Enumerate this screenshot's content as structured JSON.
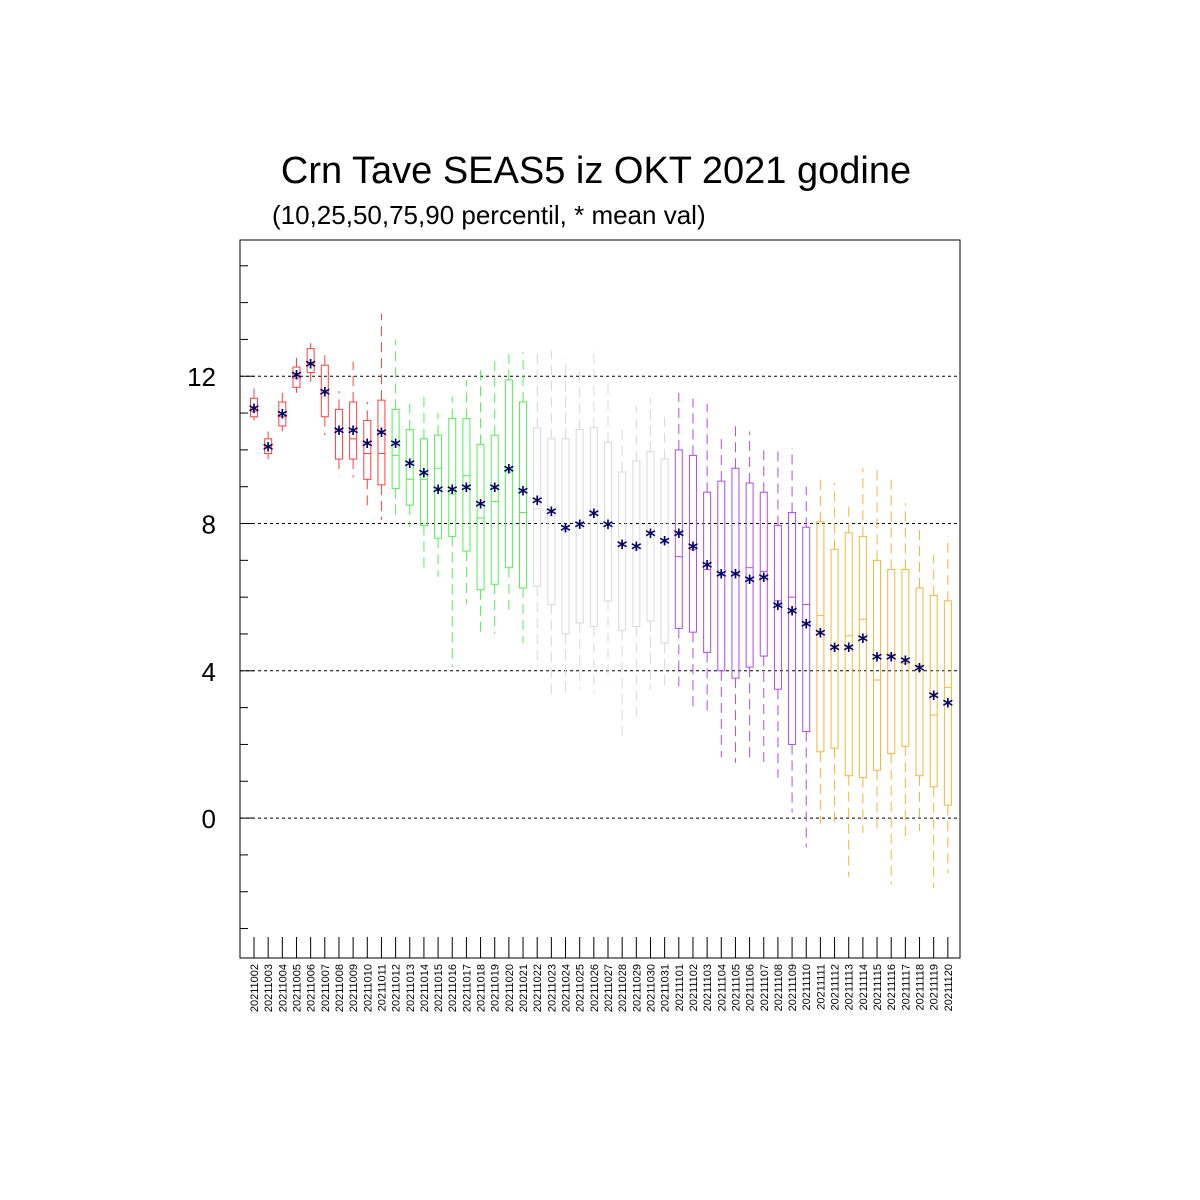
{
  "chart_data": {
    "type": "box",
    "title": "Crn Tave SEAS5 iz OKT 2021 godine",
    "subtitle": "(10,25,50,75,90 percentil, * mean val)",
    "xlabel": "",
    "ylabel": "",
    "ylim": [
      -3.8,
      15.7
    ],
    "yticks": [
      0,
      4,
      8,
      12
    ],
    "grid": "horizontal dashed at major ticks",
    "box_columns": [
      "date",
      "p10",
      "p25",
      "p50",
      "p75",
      "p90",
      "mean"
    ],
    "boxes": [
      [
        "20211002",
        10.8,
        10.9,
        11.05,
        11.4,
        11.7,
        11.1
      ],
      [
        "20211003",
        9.75,
        9.9,
        10.1,
        10.3,
        10.5,
        10.05
      ],
      [
        "20211004",
        10.5,
        10.65,
        10.9,
        11.3,
        11.55,
        10.95
      ],
      [
        "20211005",
        11.55,
        11.7,
        11.95,
        12.25,
        12.5,
        12.0
      ],
      [
        "20211006",
        11.85,
        12.1,
        12.35,
        12.75,
        12.9,
        12.3
      ],
      [
        "20211007",
        10.4,
        10.9,
        11.6,
        12.3,
        12.6,
        11.55
      ],
      [
        "20211008",
        9.3,
        9.75,
        10.55,
        11.1,
        11.6,
        10.5
      ],
      [
        "20211009",
        9.25,
        9.75,
        10.3,
        11.3,
        12.4,
        10.5
      ],
      [
        "20211010",
        8.35,
        9.2,
        9.9,
        10.8,
        11.3,
        10.15
      ],
      [
        "20211011",
        8.1,
        9.05,
        9.9,
        11.35,
        13.7,
        10.45
      ],
      [
        "20211012",
        8.2,
        8.95,
        9.85,
        11.1,
        13.0,
        10.15
      ],
      [
        "20211013",
        7.9,
        8.5,
        9.2,
        10.55,
        11.3,
        9.6
      ],
      [
        "20211014",
        6.7,
        7.95,
        9.2,
        10.3,
        11.5,
        9.35
      ],
      [
        "20211015",
        6.55,
        7.6,
        9.5,
        10.4,
        11.0,
        8.9
      ],
      [
        "20211016",
        4.1,
        7.65,
        8.8,
        10.85,
        11.45,
        8.9
      ],
      [
        "20211017",
        5.8,
        7.25,
        9.3,
        10.85,
        11.9,
        8.95
      ],
      [
        "20211018",
        5.0,
        6.2,
        8.15,
        10.15,
        12.2,
        8.5
      ],
      [
        "20211019",
        5.0,
        6.35,
        8.6,
        10.4,
        12.5,
        8.95
      ],
      [
        "20211020",
        5.5,
        6.8,
        9.4,
        11.9,
        12.7,
        9.45
      ],
      [
        "20211021",
        4.75,
        6.25,
        8.3,
        11.3,
        12.65,
        8.85
      ],
      [
        "20211022",
        4.1,
        6.3,
        8.4,
        10.6,
        12.65,
        8.6
      ],
      [
        "20211023",
        3.2,
        5.8,
        8.2,
        10.3,
        12.7,
        8.3
      ],
      [
        "20211024",
        3.4,
        5.0,
        7.8,
        10.3,
        12.5,
        7.85
      ],
      [
        "20211025",
        3.5,
        5.3,
        7.9,
        10.55,
        12.2,
        7.95
      ],
      [
        "20211026",
        3.4,
        5.2,
        8.2,
        10.6,
        12.8,
        8.25
      ],
      [
        "20211027",
        3.7,
        5.9,
        8.0,
        10.2,
        11.9,
        7.95
      ],
      [
        "20211028",
        2.25,
        5.1,
        7.4,
        9.4,
        10.6,
        7.4
      ],
      [
        "20211029",
        2.6,
        5.2,
        7.3,
        9.7,
        11.2,
        7.35
      ],
      [
        "20211030",
        3.5,
        5.35,
        7.7,
        9.95,
        11.4,
        7.7
      ],
      [
        "20211031",
        3.5,
        4.75,
        7.45,
        9.75,
        11.0,
        7.5
      ],
      [
        "20211101",
        3.5,
        5.15,
        7.1,
        10.0,
        11.55,
        7.7
      ],
      [
        "20211102",
        2.9,
        5.05,
        7.3,
        9.85,
        11.4,
        7.35
      ],
      [
        "20211103",
        2.9,
        4.5,
        6.75,
        8.85,
        11.25,
        6.85
      ],
      [
        "20211104",
        1.65,
        4.0,
        6.6,
        9.15,
        10.4,
        6.6
      ],
      [
        "20211105",
        1.5,
        3.8,
        6.65,
        9.5,
        10.8,
        6.6
      ],
      [
        "20211106",
        1.5,
        4.1,
        6.8,
        9.1,
        10.5,
        6.45
      ],
      [
        "20211107",
        1.5,
        4.4,
        6.7,
        8.85,
        10.1,
        6.5
      ],
      [
        "20211108",
        1.1,
        3.5,
        5.9,
        7.95,
        10.0,
        5.75
      ],
      [
        "20211109",
        0.15,
        2.0,
        6.0,
        8.3,
        10.05,
        5.6
      ],
      [
        "20211110",
        -0.8,
        2.35,
        5.8,
        7.9,
        9.0,
        5.25
      ],
      [
        "20211111",
        -0.15,
        1.8,
        5.5,
        8.05,
        9.3,
        5.0
      ],
      [
        "20211112",
        -0.15,
        1.9,
        4.6,
        7.3,
        9.1,
        4.6
      ],
      [
        "20211113",
        -1.6,
        1.15,
        4.95,
        7.75,
        8.6,
        4.6
      ],
      [
        "20211114",
        -0.4,
        1.1,
        5.4,
        7.65,
        9.5,
        4.85
      ],
      [
        "20211115",
        -0.3,
        1.3,
        3.75,
        7.0,
        9.45,
        4.35
      ],
      [
        "20211116",
        -1.8,
        1.75,
        4.45,
        6.75,
        9.3,
        4.35
      ],
      [
        "20211117",
        -0.55,
        1.95,
        4.2,
        6.75,
        8.55,
        4.25
      ],
      [
        "20211118",
        -0.35,
        1.15,
        4.15,
        6.25,
        7.85,
        4.05
      ],
      [
        "20211119",
        -1.9,
        0.85,
        2.8,
        6.05,
        7.15,
        3.3
      ],
      [
        "20211120",
        -1.5,
        0.35,
        3.55,
        5.9,
        7.65,
        3.1
      ]
    ],
    "color_groups": [
      {
        "from": 0,
        "to": 9,
        "color": "#ff4040"
      },
      {
        "from": 10,
        "to": 19,
        "color": "#55ee55"
      },
      {
        "from": 20,
        "to": 29,
        "color": "#d9d9d9"
      },
      {
        "from": 30,
        "to": 39,
        "color": "#b04af0"
      },
      {
        "from": 40,
        "to": 49,
        "color": "#f5b53a"
      }
    ],
    "mean_marker_color": "#000066",
    "grid_color": "#000000"
  }
}
